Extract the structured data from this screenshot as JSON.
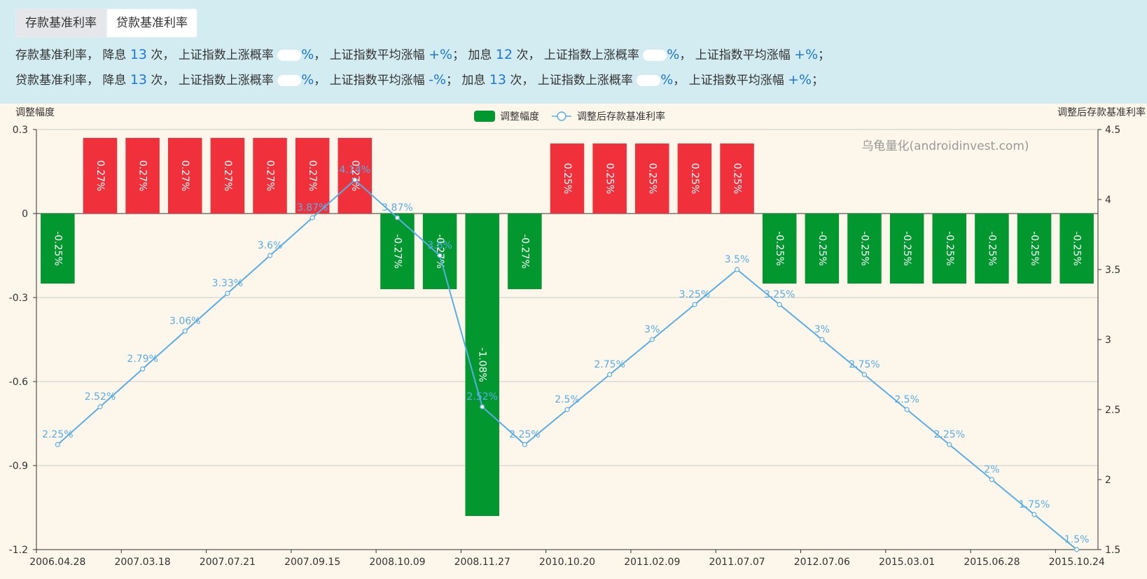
{
  "tabs": [
    {
      "label": "存款基准利率",
      "active": true
    },
    {
      "label": "贷款基准利率",
      "active": false
    }
  ],
  "summary": {
    "deposit": {
      "name": "存款基准利率",
      "cut_label": "降息",
      "cut_count": "13",
      "times": "次",
      "up_prob_label": "上证指数上涨概率",
      "avg_gain_label": "上证指数平均涨幅",
      "hike_label": "加息",
      "hike_count": "12",
      "cut_up_prob_visible": "%",
      "cut_avg_gain_visible": "+%",
      "hike_up_prob_visible": "%",
      "hike_avg_gain_visible": "+%"
    },
    "loan": {
      "name": "贷款基准利率",
      "cut_label": "降息",
      "cut_count": "13",
      "times": "次",
      "up_prob_label": "上证指数上涨概率",
      "avg_gain_label": "上证指数平均涨幅",
      "hike_label": "加息",
      "hike_count": "13",
      "cut_up_prob_visible": "%",
      "cut_avg_gain_visible": "-%",
      "hike_up_prob_visible": "%",
      "hike_avg_gain_visible": "+%"
    }
  },
  "watermark": "乌龟量化(androidinvest.com)",
  "colors": {
    "up": "#f0303a",
    "down": "#02982f",
    "line": "#5aade6",
    "grid": "#c9ccc6",
    "axis": "#333333",
    "label_text": "#ffffff"
  },
  "chart_data": {
    "type": "bar",
    "legend": [
      "调整幅度",
      "调整后存款基准利率"
    ],
    "legend_position": "top-center",
    "left_axis_title": "调整幅度",
    "right_axis_title": "调整后存款基准利率",
    "ylim_left": [
      -1.2,
      0.3
    ],
    "yticks_left": [
      "0.3",
      "0",
      "-0.3",
      "-0.6",
      "-0.9",
      "-1.2"
    ],
    "yticks_left_values": [
      0.3,
      0,
      -0.3,
      -0.6,
      -0.9,
      -1.2
    ],
    "ylim_right": [
      1.5,
      4.5
    ],
    "yticks_right": [
      "4.5",
      "4",
      "3.5",
      "3",
      "2.5",
      "2",
      "1.5"
    ],
    "yticks_right_values": [
      4.5,
      4,
      3.5,
      3,
      2.5,
      2,
      1.5
    ],
    "grid": true,
    "xtick_labels": [
      "2006.04.28",
      "2007.03.18",
      "2007.07.21",
      "2007.09.15",
      "2008.10.09",
      "2008.11.27",
      "2010.10.20",
      "2011.02.09",
      "2011.07.07",
      "2012.07.06",
      "2015.03.01",
      "2015.06.28",
      "2015.10.24"
    ],
    "xtick_indices": [
      0,
      2,
      4,
      6,
      8,
      10,
      12,
      14,
      16,
      18,
      20,
      22,
      24
    ],
    "series": [
      {
        "name": "调整幅度",
        "type": "bar",
        "values": [
          -0.25,
          0.27,
          0.27,
          0.27,
          0.27,
          0.27,
          0.27,
          0.27,
          -0.27,
          -0.27,
          -1.08,
          -0.27,
          0.25,
          0.25,
          0.25,
          0.25,
          0.25,
          -0.25,
          -0.25,
          -0.25,
          -0.25,
          -0.25,
          -0.25,
          -0.25,
          -0.25
        ],
        "labels": [
          "-0.25%",
          "0.27%",
          "0.27%",
          "0.27%",
          "0.27%",
          "0.27%",
          "0.27%",
          "0.27%",
          "-0.27%",
          "-0.27%",
          "-1.08%",
          "-0.27%",
          "0.25%",
          "0.25%",
          "0.25%",
          "0.25%",
          "0.25%",
          "-0.25%",
          "-0.25%",
          "-0.25%",
          "-0.25%",
          "-0.25%",
          "-0.25%",
          "-0.25%",
          "-0.25%"
        ]
      },
      {
        "name": "调整后存款基准利率",
        "type": "line",
        "values": [
          2.25,
          2.52,
          2.79,
          3.06,
          3.33,
          3.6,
          3.87,
          4.14,
          3.87,
          3.6,
          2.52,
          2.25,
          2.5,
          2.75,
          3,
          3.25,
          3.5,
          3.25,
          3,
          2.75,
          2.5,
          2.25,
          2,
          1.75,
          1.5
        ],
        "labels": [
          "2.25%",
          "2.52%",
          "2.79%",
          "3.06%",
          "3.33%",
          "3.6%",
          "3.87%",
          "4.14%",
          "3.87%",
          "3.6%",
          "2.52%",
          "2.25%",
          "2.5%",
          "2.75%",
          "3%",
          "3.25%",
          "3.5%",
          "3.25%",
          "3%",
          "2.75%",
          "2.5%",
          "2.25%",
          "2%",
          "1.75%",
          "1.5%"
        ]
      }
    ]
  }
}
